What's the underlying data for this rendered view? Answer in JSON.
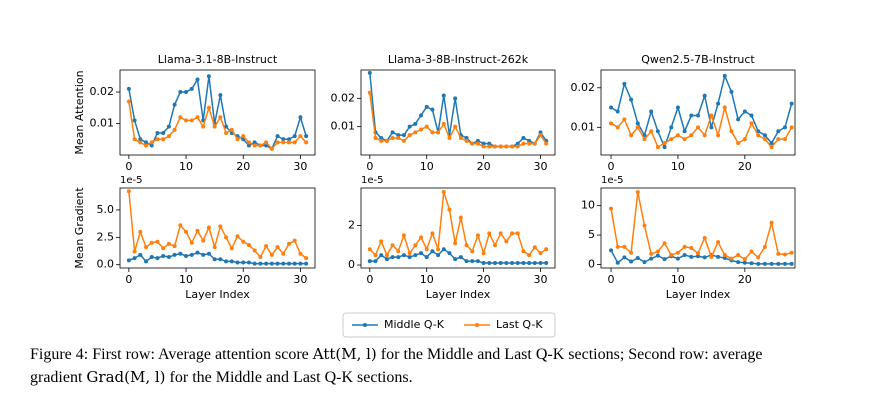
{
  "legend": [
    {
      "name": "Middle Q-K",
      "color": "#1f77b4"
    },
    {
      "name": "Last Q-K",
      "color": "#ff7f0e"
    }
  ],
  "caption": [
    [
      {
        "text": "Figure 4: First row: Average attention score "
      },
      {
        "math": "Att(M, l)"
      },
      {
        "text": " for the Middle and Last Q-K sections; Second row: average"
      }
    ],
    [
      {
        "text": "gradient "
      },
      {
        "math": "Grad(M, l)"
      },
      {
        "text": " for the Middle and Last Q-K sections."
      }
    ]
  ],
  "chart_data": [
    {
      "type": "line",
      "title": "Llama-3.1-8B-Instruct",
      "ylabel": "Mean Attention",
      "x": [
        0,
        1,
        2,
        3,
        4,
        5,
        6,
        7,
        8,
        9,
        10,
        11,
        12,
        13,
        14,
        15,
        16,
        17,
        18,
        19,
        20,
        21,
        22,
        23,
        24,
        25,
        26,
        27,
        28,
        29,
        30,
        31
      ],
      "xlim": [
        -1.55,
        32.55
      ],
      "xticks": [
        0,
        10,
        20,
        30
      ],
      "ylim": [
        0.0,
        0.027
      ],
      "yticks": [
        0.01,
        0.02
      ],
      "series": [
        {
          "values": [
            0.021,
            0.011,
            0.005,
            0.004,
            0.003,
            0.007,
            0.007,
            0.009,
            0.016,
            0.02,
            0.02,
            0.021,
            0.024,
            0.011,
            0.025,
            0.01,
            0.019,
            0.009,
            0.007,
            0.006,
            0.005,
            0.003,
            0.004,
            0.003,
            0.003,
            0.002,
            0.006,
            0.005,
            0.005,
            0.006,
            0.012,
            0.006
          ]
        },
        {
          "values": [
            0.017,
            0.005,
            0.004,
            0.003,
            0.004,
            0.005,
            0.005,
            0.006,
            0.008,
            0.012,
            0.011,
            0.011,
            0.012,
            0.009,
            0.015,
            0.009,
            0.012,
            0.007,
            0.008,
            0.005,
            0.006,
            0.004,
            0.003,
            0.003,
            0.004,
            0.002,
            0.004,
            0.004,
            0.004,
            0.004,
            0.006,
            0.004
          ]
        }
      ]
    },
    {
      "type": "line",
      "title": "Llama-3-8B-Instruct-262k",
      "x": [
        0,
        1,
        2,
        3,
        4,
        5,
        6,
        7,
        8,
        9,
        10,
        11,
        12,
        13,
        14,
        15,
        16,
        17,
        18,
        19,
        20,
        21,
        22,
        23,
        24,
        25,
        26,
        27,
        28,
        29,
        30,
        31
      ],
      "xlim": [
        -1.55,
        32.55
      ],
      "xticks": [
        0,
        10,
        20,
        30
      ],
      "ylim": [
        0.0,
        0.03
      ],
      "yticks": [
        0.01,
        0.02
      ],
      "series": [
        {
          "values": [
            0.029,
            0.008,
            0.006,
            0.005,
            0.008,
            0.007,
            0.007,
            0.01,
            0.011,
            0.014,
            0.017,
            0.016,
            0.008,
            0.021,
            0.007,
            0.02,
            0.007,
            0.006,
            0.004,
            0.005,
            0.004,
            0.004,
            0.003,
            0.003,
            0.003,
            0.003,
            0.004,
            0.006,
            0.005,
            0.004,
            0.008,
            0.005
          ]
        },
        {
          "values": [
            0.022,
            0.006,
            0.005,
            0.005,
            0.006,
            0.006,
            0.005,
            0.007,
            0.008,
            0.009,
            0.01,
            0.008,
            0.008,
            0.011,
            0.006,
            0.01,
            0.006,
            0.005,
            0.004,
            0.004,
            0.003,
            0.003,
            0.003,
            0.003,
            0.003,
            0.003,
            0.003,
            0.004,
            0.004,
            0.004,
            0.007,
            0.004
          ]
        }
      ]
    },
    {
      "type": "line",
      "title": "Qwen2.5-7B-Instruct",
      "x": [
        0,
        1,
        2,
        3,
        4,
        5,
        6,
        7,
        8,
        9,
        10,
        11,
        12,
        13,
        14,
        15,
        16,
        17,
        18,
        19,
        20,
        21,
        22,
        23,
        24,
        25,
        26,
        27
      ],
      "xlim": [
        -1.5,
        27.5
      ],
      "xticks": [
        0,
        10,
        20
      ],
      "ylim": [
        0.003,
        0.0245
      ],
      "yticks": [
        0.01,
        0.02
      ],
      "series": [
        {
          "values": [
            0.015,
            0.014,
            0.021,
            0.017,
            0.011,
            0.008,
            0.014,
            0.009,
            0.005,
            0.01,
            0.015,
            0.009,
            0.013,
            0.013,
            0.018,
            0.01,
            0.016,
            0.023,
            0.019,
            0.012,
            0.014,
            0.013,
            0.009,
            0.008,
            0.006,
            0.009,
            0.01,
            0.016
          ]
        },
        {
          "values": [
            0.011,
            0.01,
            0.012,
            0.008,
            0.01,
            0.007,
            0.009,
            0.005,
            0.006,
            0.007,
            0.008,
            0.007,
            0.008,
            0.01,
            0.008,
            0.013,
            0.008,
            0.015,
            0.009,
            0.006,
            0.007,
            0.011,
            0.008,
            0.007,
            0.005,
            0.007,
            0.007,
            0.01
          ]
        }
      ]
    },
    {
      "type": "line",
      "ylabel": "Mean Gradient",
      "xlabel": "Layer Index",
      "y_offset_label": "1e-5",
      "x": [
        0,
        1,
        2,
        3,
        4,
        5,
        6,
        7,
        8,
        9,
        10,
        11,
        12,
        13,
        14,
        15,
        16,
        17,
        18,
        19,
        20,
        21,
        22,
        23,
        24,
        25,
        26,
        27,
        28,
        29,
        30,
        31
      ],
      "xlim": [
        -1.55,
        32.55
      ],
      "xticks": [
        0,
        10,
        20,
        30
      ],
      "ylim": [
        -0.3,
        7.0
      ],
      "yticks": [
        {
          "value": 0,
          "label": "0.0"
        },
        {
          "value": 2.5,
          "label": "2.5"
        },
        {
          "value": 5,
          "label": "5.0"
        }
      ],
      "series": [
        {
          "values": [
            0.4,
            0.6,
            0.9,
            0.3,
            0.7,
            0.6,
            0.8,
            0.7,
            0.9,
            1.0,
            0.8,
            0.9,
            1.1,
            0.9,
            1.0,
            0.5,
            0.5,
            0.3,
            0.3,
            0.2,
            0.2,
            0.2,
            0.1,
            0.1,
            0.1,
            0.1,
            0.1,
            0.1,
            0.1,
            0.1,
            0.1,
            0.1
          ]
        },
        {
          "values": [
            6.7,
            1.2,
            3.0,
            1.6,
            2.0,
            2.1,
            1.5,
            1.9,
            1.7,
            3.6,
            3.0,
            2.0,
            3.1,
            2.2,
            3.4,
            1.6,
            3.5,
            2.5,
            1.5,
            2.6,
            2.1,
            1.8,
            1.3,
            0.7,
            1.7,
            0.9,
            1.6,
            1.0,
            1.9,
            2.2,
            1.0,
            0.6
          ]
        }
      ]
    },
    {
      "type": "line",
      "xlabel": "Layer Index",
      "y_offset_label": "1e-5",
      "x": [
        0,
        1,
        2,
        3,
        4,
        5,
        6,
        7,
        8,
        9,
        10,
        11,
        12,
        13,
        14,
        15,
        16,
        17,
        18,
        19,
        20,
        21,
        22,
        23,
        24,
        25,
        26,
        27,
        28,
        29,
        30,
        31
      ],
      "xlim": [
        -1.55,
        32.55
      ],
      "xticks": [
        0,
        10,
        20,
        30
      ],
      "ylim": [
        -0.15,
        3.9
      ],
      "yticks": [
        0,
        2
      ],
      "series": [
        {
          "values": [
            0.2,
            0.2,
            0.5,
            0.3,
            0.4,
            0.4,
            0.5,
            0.4,
            0.5,
            0.6,
            0.4,
            0.7,
            0.5,
            0.8,
            0.6,
            0.3,
            0.4,
            0.2,
            0.2,
            0.2,
            0.1,
            0.1,
            0.1,
            0.1,
            0.1,
            0.1,
            0.1,
            0.1,
            0.1,
            0.1,
            0.1,
            0.1
          ]
        },
        {
          "values": [
            0.8,
            0.5,
            1.2,
            0.5,
            1.0,
            0.7,
            1.5,
            0.6,
            1.0,
            1.4,
            0.8,
            1.6,
            0.8,
            3.7,
            2.8,
            1.1,
            2.4,
            1.0,
            0.7,
            1.5,
            0.6,
            1.6,
            1.0,
            1.6,
            1.2,
            1.6,
            1.6,
            0.7,
            0.5,
            0.9,
            0.6,
            0.8
          ]
        }
      ]
    },
    {
      "type": "line",
      "xlabel": "Layer Index",
      "y_offset_label": "1e-5",
      "x": [
        0,
        1,
        2,
        3,
        4,
        5,
        6,
        7,
        8,
        9,
        10,
        11,
        12,
        13,
        14,
        15,
        16,
        17,
        18,
        19,
        20,
        21,
        22,
        23,
        24,
        25,
        26,
        27
      ],
      "xlim": [
        -1.5,
        27.5
      ],
      "xticks": [
        0,
        10,
        20
      ],
      "ylim": [
        -0.6,
        13.0
      ],
      "yticks": [
        0,
        5,
        10
      ],
      "series": [
        {
          "values": [
            2.4,
            0.3,
            1.2,
            0.5,
            1.1,
            0.4,
            1.0,
            1.5,
            0.9,
            1.4,
            1.0,
            1.6,
            1.3,
            1.4,
            1.2,
            1.6,
            1.3,
            1.1,
            0.7,
            0.4,
            0.3,
            0.2,
            0.1,
            0.1,
            0.1,
            0.1,
            0.1,
            0.1
          ]
        },
        {
          "values": [
            9.5,
            3.0,
            3.0,
            2.0,
            12.3,
            6.6,
            1.8,
            2.2,
            3.6,
            1.6,
            2.0,
            3.0,
            2.8,
            1.9,
            4.5,
            1.3,
            3.8,
            1.6,
            1.0,
            1.6,
            0.9,
            2.2,
            1.2,
            3.0,
            7.1,
            1.8,
            1.7,
            2.0
          ]
        }
      ]
    }
  ]
}
